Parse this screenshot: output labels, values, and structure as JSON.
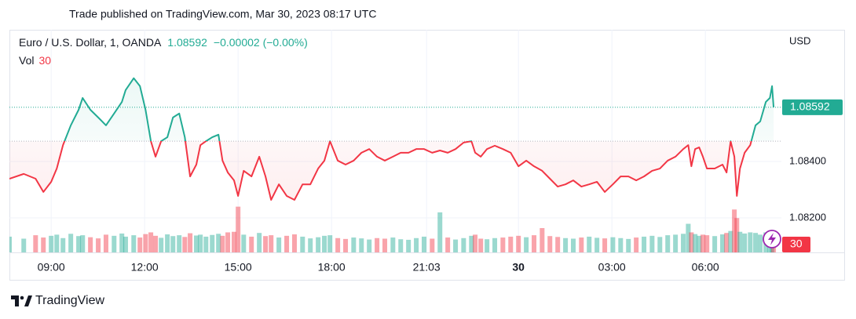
{
  "chart_data": {
    "type": "baseline",
    "header": "Trade published on TradingView.com, Mar 30, 2023 08:17 UTC",
    "symbol": "Euro / U.S. Dollar, 1, OANDA",
    "change": "−0.00002 (−0.00%)",
    "volume_label": "Vol",
    "currency": "USD",
    "brand": "TradingView",
    "colors": {
      "up": "#22ab94",
      "down": "#f23645"
    },
    "baseline": 1.08472,
    "grid": true,
    "xlim": [
      7.66,
      32.44
    ],
    "ylim": [
      1.08078,
      1.08861
    ],
    "xticks": [
      {
        "value": 9,
        "label": "09:00"
      },
      {
        "value": 12,
        "label": "12:00"
      },
      {
        "value": 15,
        "label": "15:00"
      },
      {
        "value": 18,
        "label": "18:00"
      },
      {
        "value": 21.05,
        "label": "21:03"
      },
      {
        "value": 24,
        "label": "30"
      },
      {
        "value": 27,
        "label": "03:00"
      },
      {
        "value": 30,
        "label": "06:00"
      }
    ],
    "yticks": [
      {
        "value": 1.082,
        "label": "1.08200"
      },
      {
        "value": 1.084,
        "label": "1.08400"
      }
    ],
    "x": [
      7.66,
      8.12,
      8.5,
      8.75,
      9.0,
      9.18,
      9.38,
      9.63,
      9.88,
      10.01,
      10.26,
      10.51,
      10.76,
      11.02,
      11.27,
      11.39,
      11.65,
      11.85,
      12.03,
      12.2,
      12.35,
      12.53,
      12.73,
      12.91,
      13.11,
      13.29,
      13.46,
      13.66,
      13.79,
      13.97,
      14.17,
      14.37,
      14.5,
      14.67,
      14.87,
      15.0,
      15.18,
      15.43,
      15.68,
      15.88,
      16.06,
      16.31,
      16.56,
      16.81,
      17.07,
      17.32,
      17.57,
      17.77,
      17.95,
      18.2,
      18.45,
      18.71,
      18.96,
      19.21,
      19.46,
      19.71,
      19.97,
      20.22,
      20.47,
      20.72,
      20.97,
      21.23,
      21.48,
      21.73,
      21.98,
      22.24,
      22.49,
      22.61,
      22.79,
      22.99,
      23.24,
      23.5,
      23.75,
      24.0,
      24.25,
      24.5,
      24.76,
      25.01,
      25.26,
      25.51,
      25.76,
      26.02,
      26.27,
      26.52,
      26.77,
      27.03,
      27.28,
      27.53,
      27.78,
      28.03,
      28.29,
      28.54,
      28.79,
      29.04,
      29.29,
      29.45,
      29.55,
      29.67,
      29.8,
      29.92,
      30.05,
      30.3,
      30.55,
      30.68,
      30.81,
      30.93,
      31.01,
      31.11,
      31.26,
      31.44,
      31.61,
      31.76,
      31.94,
      32.07,
      32.14,
      32.19
    ],
    "values": [
      1.08339,
      1.08356,
      1.08339,
      1.08292,
      1.08328,
      1.08375,
      1.08458,
      1.08528,
      1.08583,
      1.08625,
      1.08583,
      1.08556,
      1.08528,
      1.0857,
      1.08611,
      1.08653,
      1.08695,
      1.08667,
      1.08583,
      1.08472,
      1.08417,
      1.08472,
      1.08486,
      1.08556,
      1.0857,
      1.08486,
      1.08347,
      1.08389,
      1.08458,
      1.08472,
      1.08486,
      1.08495,
      1.08403,
      1.08361,
      1.08333,
      1.08278,
      1.08367,
      1.08347,
      1.08417,
      1.08347,
      1.08264,
      1.08319,
      1.08278,
      1.08264,
      1.08319,
      1.08319,
      1.08375,
      1.08403,
      1.08472,
      1.08403,
      1.08389,
      1.08403,
      1.08431,
      1.08444,
      1.08417,
      1.08403,
      1.08417,
      1.08431,
      1.08431,
      1.08444,
      1.08444,
      1.08431,
      1.08439,
      1.08431,
      1.08444,
      1.08467,
      1.08472,
      1.08431,
      1.08417,
      1.08444,
      1.08456,
      1.08444,
      1.08431,
      1.08383,
      1.08403,
      1.08383,
      1.08367,
      1.08339,
      1.08311,
      1.08319,
      1.08333,
      1.08311,
      1.08319,
      1.08328,
      1.08292,
      1.08319,
      1.08347,
      1.08347,
      1.08333,
      1.08347,
      1.08367,
      1.08375,
      1.08403,
      1.08417,
      1.08444,
      1.08458,
      1.08383,
      1.08444,
      1.0845,
      1.08417,
      1.08375,
      1.08375,
      1.08389,
      1.08361,
      1.08472,
      1.08417,
      1.08278,
      1.08375,
      1.08431,
      1.08458,
      1.08528,
      1.08542,
      1.08611,
      1.08625,
      1.08667,
      1.08592
    ],
    "volume": [
      55,
      48,
      60,
      52,
      58,
      62,
      50,
      65,
      57,
      60,
      53,
      49,
      62,
      58,
      66,
      55,
      60,
      52,
      64,
      70,
      58,
      51,
      63,
      57,
      60,
      54,
      67,
      59,
      62,
      55,
      61,
      65,
      58,
      70,
      72,
      160,
      62,
      55,
      68,
      57,
      60,
      52,
      58,
      63,
      55,
      49,
      53,
      58,
      60,
      50,
      47,
      52,
      49,
      45,
      50,
      48,
      52,
      46,
      44,
      50,
      55,
      48,
      140,
      52,
      45,
      50,
      58,
      62,
      48,
      46,
      50,
      52,
      55,
      58,
      53,
      60,
      85,
      57,
      54,
      50,
      48,
      52,
      55,
      51,
      49,
      53,
      50,
      47,
      52,
      55,
      58,
      54,
      60,
      62,
      65,
      100,
      70,
      64,
      58,
      62,
      60,
      57,
      63,
      68,
      75,
      150,
      120,
      72,
      66,
      70,
      68,
      62,
      70,
      74,
      65,
      30
    ]
  }
}
